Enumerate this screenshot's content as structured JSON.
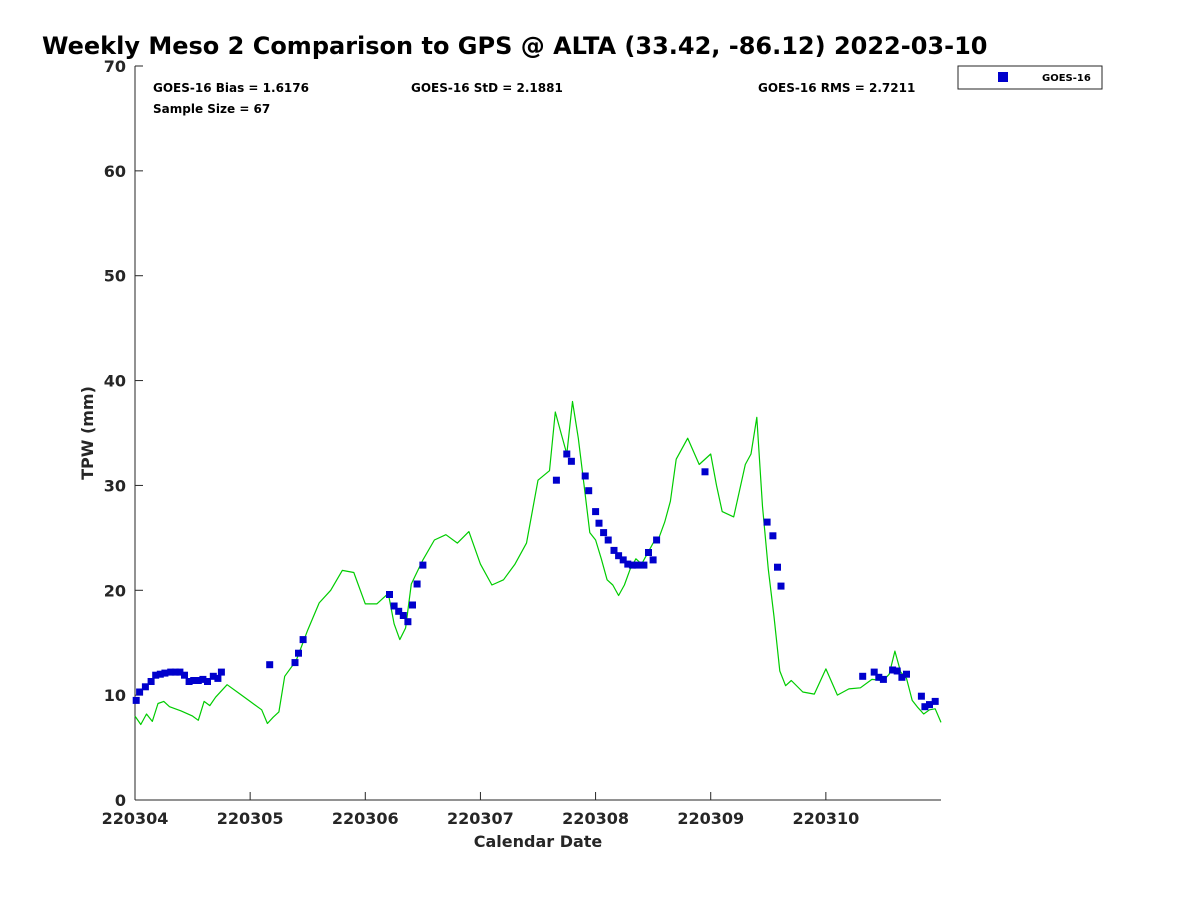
{
  "chart_data": {
    "type": "scatter",
    "title": "Weekly Meso 2 Comparison to GPS @ ALTA (33.42, -86.12) 2022-03-10",
    "xlabel": "Calendar Date",
    "ylabel": "TPW (mm)",
    "xlim": [
      0,
      7
    ],
    "ylim": [
      0,
      70
    ],
    "x_tick_values": [
      0,
      1,
      2,
      3,
      4,
      5,
      6
    ],
    "x_tick_labels": [
      "220304",
      "220305",
      "220306",
      "220307",
      "220308",
      "220309",
      "220310"
    ],
    "y_tick_values": [
      0,
      10,
      20,
      30,
      40,
      50,
      60,
      70
    ],
    "y_tick_labels": [
      "0",
      "10",
      "20",
      "30",
      "40",
      "50",
      "60",
      "70"
    ],
    "grid": false,
    "legend_position": "outside-top-right",
    "stats": {
      "bias": "GOES-16 Bias = 1.6176",
      "std": "GOES-16 StD = 2.1881",
      "rms": "GOES-16 RMS = 2.7211",
      "sample": "Sample Size = 67"
    },
    "series": [
      {
        "name": "GOES-16",
        "kind": "scatter",
        "marker": "square",
        "color": "#0000cc",
        "x": [
          0.01,
          0.04,
          0.09,
          0.14,
          0.18,
          0.22,
          0.26,
          0.31,
          0.35,
          0.39,
          0.43,
          0.47,
          0.51,
          0.55,
          0.59,
          0.63,
          0.68,
          0.72,
          0.75,
          1.17,
          1.39,
          1.42,
          1.46,
          2.21,
          2.25,
          2.29,
          2.33,
          2.37,
          2.41,
          2.45,
          2.5,
          3.66,
          3.75,
          3.79,
          3.91,
          3.94,
          4.0,
          4.03,
          4.07,
          4.11,
          4.16,
          4.2,
          4.24,
          4.28,
          4.32,
          4.36,
          4.42,
          4.46,
          4.5,
          4.53,
          4.95,
          5.49,
          5.54,
          5.58,
          5.61,
          6.32,
          6.42,
          6.46,
          6.5,
          6.58,
          6.62,
          6.66,
          6.7,
          6.83,
          6.86,
          6.9,
          6.95
        ],
        "y": [
          9.5,
          10.3,
          10.8,
          11.3,
          11.9,
          12.0,
          12.1,
          12.2,
          12.2,
          12.2,
          11.9,
          11.3,
          11.4,
          11.4,
          11.5,
          11.3,
          11.8,
          11.6,
          12.2,
          12.9,
          13.1,
          14.0,
          15.3,
          19.6,
          18.5,
          18.0,
          17.6,
          17.0,
          18.6,
          20.6,
          22.4,
          30.5,
          33.0,
          32.3,
          30.9,
          29.5,
          27.5,
          26.4,
          25.5,
          24.8,
          23.8,
          23.3,
          22.9,
          22.5,
          22.4,
          22.4,
          22.4,
          23.6,
          22.9,
          24.8,
          31.3,
          26.5,
          25.2,
          22.2,
          20.4,
          11.8,
          12.2,
          11.7,
          11.5,
          12.4,
          12.3,
          11.7,
          12.0,
          9.9,
          8.9,
          9.1,
          9.4
        ]
      },
      {
        "name": "GPS",
        "kind": "line",
        "color": "#00cc00",
        "x": [
          0.0,
          0.05,
          0.1,
          0.15,
          0.2,
          0.25,
          0.3,
          0.4,
          0.5,
          0.55,
          0.6,
          0.65,
          0.7,
          0.8,
          0.9,
          1.0,
          1.1,
          1.15,
          1.2,
          1.25,
          1.3,
          1.4,
          1.5,
          1.6,
          1.7,
          1.8,
          1.9,
          2.0,
          2.1,
          2.2,
          2.25,
          2.3,
          2.35,
          2.4,
          2.5,
          2.6,
          2.7,
          2.8,
          2.9,
          3.0,
          3.1,
          3.2,
          3.3,
          3.4,
          3.5,
          3.6,
          3.65,
          3.7,
          3.75,
          3.8,
          3.85,
          3.9,
          3.95,
          4.0,
          4.05,
          4.1,
          4.15,
          4.2,
          4.25,
          4.3,
          4.35,
          4.4,
          4.45,
          4.5,
          4.55,
          4.6,
          4.65,
          4.7,
          4.8,
          4.9,
          5.0,
          5.05,
          5.1,
          5.2,
          5.3,
          5.35,
          5.4,
          5.45,
          5.5,
          5.55,
          5.6,
          5.65,
          5.7,
          5.8,
          5.9,
          6.0,
          6.1,
          6.2,
          6.3,
          6.4,
          6.5,
          6.55,
          6.6,
          6.65,
          6.7,
          6.75,
          6.8,
          6.85,
          6.9,
          6.95,
          7.0
        ],
        "y": [
          8.0,
          7.2,
          8.2,
          7.5,
          9.2,
          9.4,
          8.9,
          8.5,
          8.0,
          7.6,
          9.4,
          9.0,
          9.8,
          11.0,
          10.2,
          9.4,
          8.6,
          7.3,
          7.9,
          8.4,
          11.8,
          13.3,
          16.2,
          18.8,
          20.0,
          21.9,
          21.7,
          18.7,
          18.7,
          19.7,
          16.8,
          15.3,
          16.4,
          20.6,
          22.9,
          24.8,
          25.3,
          24.5,
          25.6,
          22.5,
          20.5,
          21.0,
          22.5,
          24.5,
          30.5,
          31.4,
          37.0,
          35.0,
          33.0,
          38.0,
          34.5,
          30.0,
          25.5,
          24.8,
          23.0,
          21.0,
          20.5,
          19.5,
          20.5,
          22.0,
          23.0,
          22.5,
          23.5,
          24.5,
          25.0,
          26.5,
          28.5,
          32.5,
          34.5,
          32.0,
          33.0,
          30.0,
          27.5,
          27.0,
          32.0,
          33.0,
          36.5,
          28.0,
          22.0,
          17.5,
          12.3,
          10.9,
          11.4,
          10.3,
          10.1,
          12.5,
          10.0,
          10.6,
          10.7,
          11.5,
          11.4,
          12.0,
          14.2,
          12.2,
          11.6,
          9.5,
          8.8,
          8.2,
          8.6,
          8.7,
          7.4
        ]
      }
    ]
  }
}
